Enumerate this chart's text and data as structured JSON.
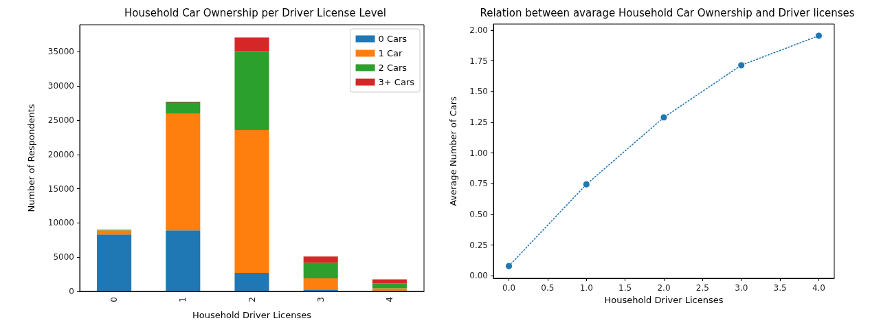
{
  "chart_data": [
    {
      "type": "bar",
      "title": "Household Car Ownership per Driver License Level",
      "xlabel": "Household Driver Licenses",
      "ylabel": "Number of Respondents",
      "categories": [
        "0",
        "1",
        "2",
        "3",
        "4"
      ],
      "stacked": true,
      "series": [
        {
          "name": "0 Cars",
          "color": "#1f77b4",
          "values": [
            8300,
            8900,
            2700,
            200,
            100
          ]
        },
        {
          "name": "1 Car",
          "color": "#ff7f0e",
          "values": [
            600,
            17100,
            20900,
            1700,
            350
          ]
        },
        {
          "name": "2 Cars",
          "color": "#2ca02c",
          "values": [
            100,
            1600,
            11500,
            2300,
            700
          ]
        },
        {
          "name": "3+ Cars",
          "color": "#d62728",
          "values": [
            0,
            100,
            2000,
            900,
            600
          ]
        }
      ],
      "ylim": [
        0,
        38950
      ],
      "yticks": [
        0,
        5000,
        10000,
        15000,
        20000,
        25000,
        30000,
        35000
      ],
      "grid": false,
      "legend": "top right"
    },
    {
      "type": "line",
      "title": "Relation between avarage Household Car Ownership and Driver licenses",
      "xlabel": "Household Driver Licenses",
      "ylabel": "Average Number of Cars",
      "x": [
        0,
        1,
        2,
        3,
        4
      ],
      "series": [
        {
          "color": "#1f77b4",
          "values": [
            0.08,
            0.745,
            1.29,
            1.715,
            1.955
          ]
        }
      ],
      "xlim": [
        -0.2,
        4.2
      ],
      "xticks": [
        {
          "value": 0,
          "label": "0.0"
        },
        {
          "value": 0.5,
          "label": "0.5"
        },
        {
          "value": 1,
          "label": "1.0"
        },
        {
          "value": 1.5,
          "label": "1.5"
        },
        {
          "value": 2,
          "label": "2.0"
        },
        {
          "value": 2.5,
          "label": "2.5"
        },
        {
          "value": 3,
          "label": "3.0"
        },
        {
          "value": 3.5,
          "label": "3.5"
        },
        {
          "value": 4,
          "label": "4.0"
        }
      ],
      "ylim": [
        -0.02,
        2.05
      ],
      "yticks": [
        {
          "value": 0,
          "label": "0.00"
        },
        {
          "value": 0.25,
          "label": "0.25"
        },
        {
          "value": 0.5,
          "label": "0.50"
        },
        {
          "value": 0.75,
          "label": "0.75"
        },
        {
          "value": 1,
          "label": "1.00"
        },
        {
          "value": 1.25,
          "label": "1.25"
        },
        {
          "value": 1.5,
          "label": "1.50"
        },
        {
          "value": 1.75,
          "label": "1.75"
        },
        {
          "value": 2,
          "label": "2.00"
        }
      ],
      "grid": false,
      "marker": "circle",
      "line_style": "dotted",
      "legend": false
    }
  ]
}
